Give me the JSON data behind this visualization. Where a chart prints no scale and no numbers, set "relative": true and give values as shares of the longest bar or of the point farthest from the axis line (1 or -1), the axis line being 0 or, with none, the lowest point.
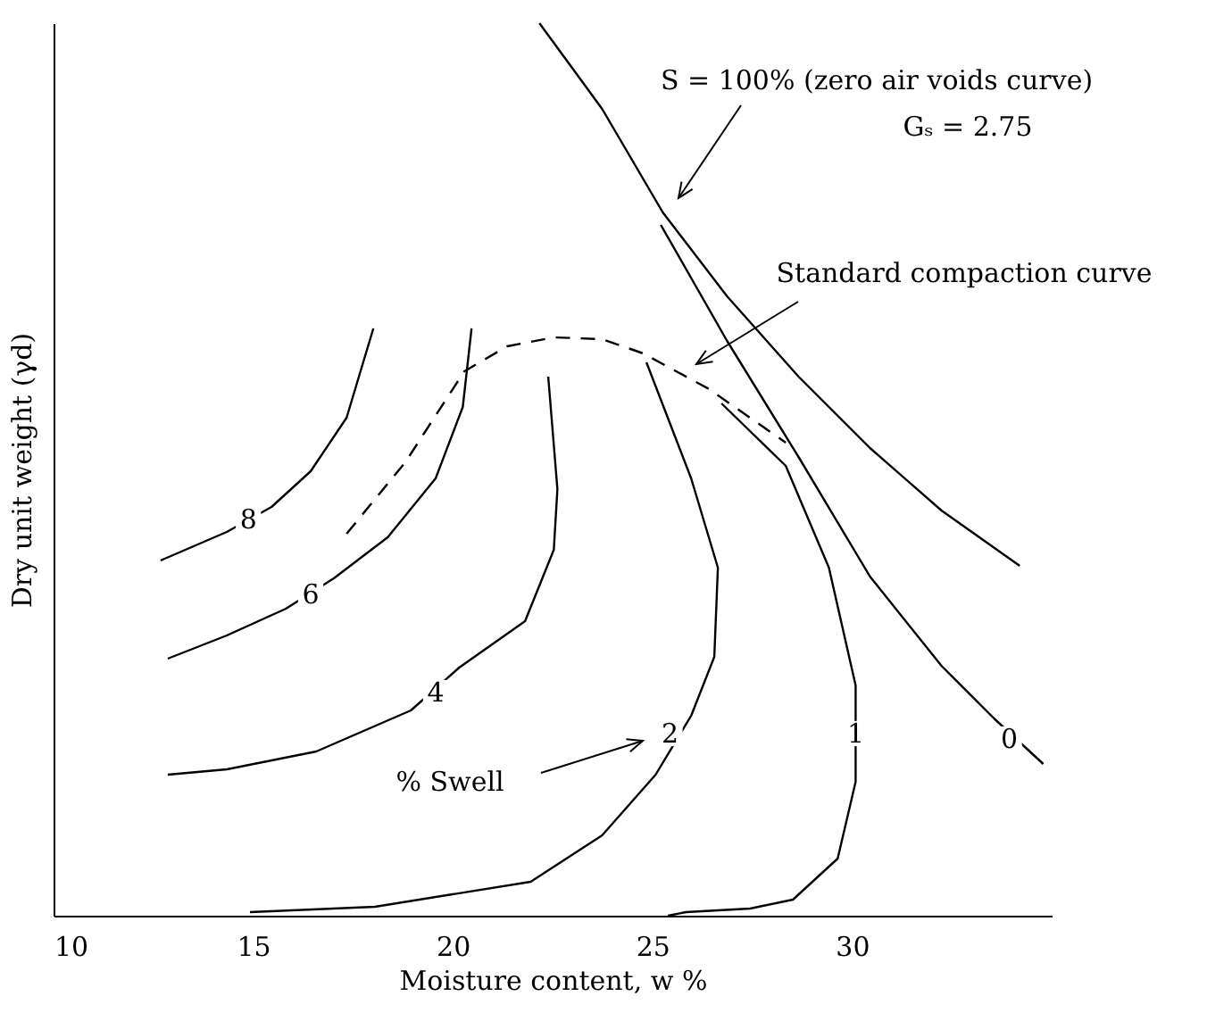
{
  "chart_data": {
    "type": "line",
    "relative": true,
    "xlabel": "Moisture content, w %",
    "ylabel": "Dry unit weight  (γd)",
    "xlim": [
      10,
      35
    ],
    "xticks": [
      10,
      15,
      20,
      25,
      30
    ],
    "grid": false,
    "marker": "none",
    "series": [
      {
        "color": "#000000",
        "line_style": "solid",
        "x": [
          22.17,
          23.74,
          25.26,
          26.87,
          28.66,
          30.45,
          32.24,
          34.2
        ],
        "values": [
          1.0,
          0.904,
          0.788,
          0.694,
          0.604,
          0.524,
          0.454,
          0.392
        ]
      },
      {
        "color": "#000000",
        "line_style": "dashed",
        "x": [
          17.34,
          18.81,
          20.29,
          21.36,
          22.53,
          23.74,
          24.77,
          26.42,
          28.34
        ],
        "values": [
          0.428,
          0.508,
          0.61,
          0.638,
          0.648,
          0.646,
          0.63,
          0.59,
          0.53
        ]
      },
      {
        "color": "#000000",
        "line_style": "solid",
        "x": [
          25.21,
          26.87,
          28.66,
          30.45,
          32.24,
          33.58,
          34.79
        ],
        "values": [
          0.774,
          0.644,
          0.514,
          0.38,
          0.28,
          0.22,
          0.17
        ]
      },
      {
        "color": "#000000",
        "line_style": "solid",
        "x": [
          26.73,
          28.34,
          29.42,
          30.09,
          30.09,
          29.64,
          28.52,
          27.45,
          25.84,
          25.39
        ],
        "values": [
          0.574,
          0.504,
          0.39,
          0.258,
          0.15,
          0.064,
          0.018,
          0.008,
          0.004,
          0.0
        ]
      },
      {
        "color": "#000000",
        "line_style": "solid",
        "x": [
          24.85,
          25.97,
          26.64,
          26.55,
          25.97,
          25.08,
          23.74,
          21.95,
          18.05,
          14.92
        ],
        "values": [
          0.62,
          0.49,
          0.39,
          0.29,
          0.224,
          0.158,
          0.09,
          0.038,
          0.01,
          0.004
        ]
      },
      {
        "color": "#000000",
        "line_style": "solid",
        "x": [
          22.39,
          22.62,
          22.53,
          21.81,
          20.16,
          18.95,
          16.58,
          14.34,
          12.86
        ],
        "values": [
          0.604,
          0.478,
          0.41,
          0.33,
          0.278,
          0.23,
          0.184,
          0.164,
          0.158
        ]
      },
      {
        "color": "#000000",
        "line_style": "solid",
        "x": [
          20.47,
          20.25,
          19.57,
          18.37,
          17.02,
          15.82,
          14.34,
          12.86
        ],
        "values": [
          0.658,
          0.57,
          0.49,
          0.424,
          0.378,
          0.344,
          0.314,
          0.288
        ]
      },
      {
        "color": "#000000",
        "line_style": "solid",
        "x": [
          18.01,
          17.34,
          16.44,
          15.46,
          14.34,
          12.68
        ],
        "values": [
          0.658,
          0.558,
          0.498,
          0.458,
          0.43,
          0.398
        ]
      }
    ],
    "annotations": [
      "S = 100% (zero air voids curve)",
      "Gₛ = 2.75",
      "Standard compaction curve",
      "% Swell",
      {
        "text": "8",
        "x": 14.88,
        "y": 0.444
      },
      {
        "text": "6",
        "x": 16.44,
        "y": 0.36
      },
      {
        "text": "4",
        "x": 19.57,
        "y": 0.25
      },
      {
        "text": "2",
        "x": 25.44,
        "y": 0.204
      },
      {
        "text": "1",
        "x": 30.09,
        "y": 0.204
      },
      {
        "text": "0",
        "x": 33.94,
        "y": 0.198
      }
    ]
  }
}
